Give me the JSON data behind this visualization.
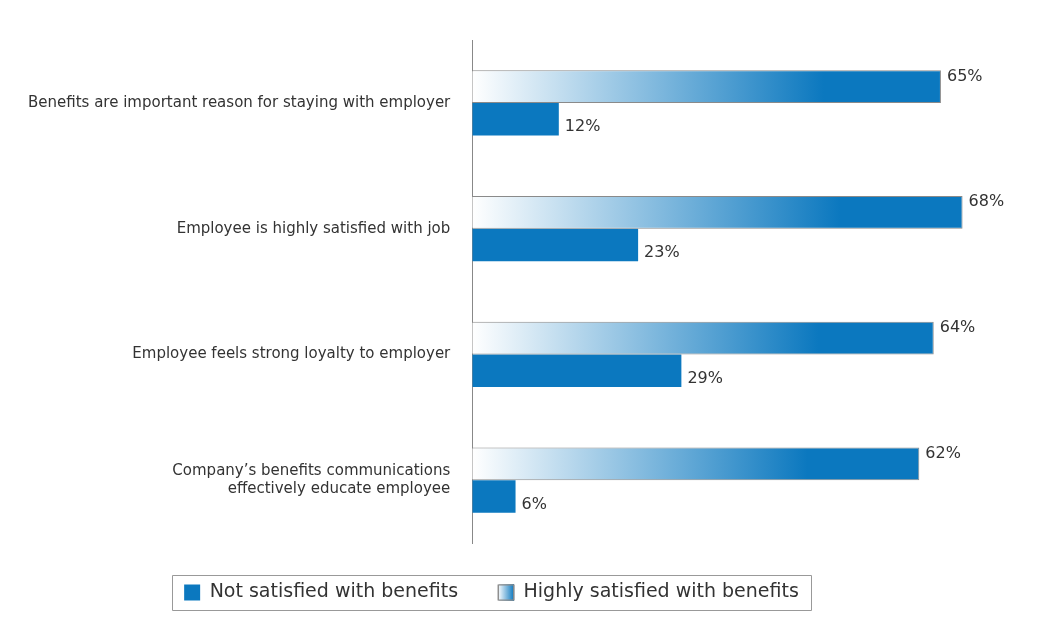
{
  "chart_data": {
    "type": "bar",
    "orientation": "horizontal",
    "legend": "bottom",
    "categories": [
      "Benefits are important reason for staying with employer",
      "Employee is highly satisfied with job",
      "Employee feels strong loyalty to employer",
      "Company’s benefits communications effectively educate employee"
    ],
    "series": [
      {
        "name": "Highly satisfied with benefits",
        "color": "#0b78bf",
        "values": [
          65,
          68,
          64,
          62
        ],
        "value_labels": [
          "65%",
          "68%",
          "64%",
          "62%"
        ]
      },
      {
        "name": "Not satisfied with benefits",
        "color": "#0b78bf",
        "values": [
          12,
          23,
          29,
          6
        ],
        "value_labels": [
          "12%",
          "23%",
          "29%",
          "6%"
        ]
      }
    ]
  }
}
